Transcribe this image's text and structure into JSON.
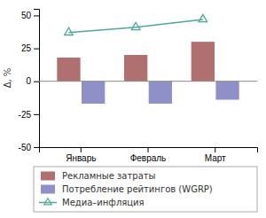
{
  "chart_data": {
    "type": "bar",
    "categories": [
      "Январь",
      "Февраль",
      "Март"
    ],
    "series": [
      {
        "name": "Рекламные затраты",
        "color": "#b07070",
        "values": [
          18,
          20,
          30
        ]
      },
      {
        "name": "Потребление рейтингов (WGRP)",
        "color": "#9090c8",
        "values": [
          -17,
          -17,
          -14
        ]
      },
      {
        "name": "Медиа–инфляция",
        "type": "line",
        "color": "#50a898",
        "marker": "triangle",
        "values": [
          37,
          41,
          47
        ]
      }
    ],
    "ylabel": "Δ, %",
    "ylim": [
      -50,
      55
    ],
    "yticks": [
      -50,
      -25,
      0,
      25,
      50
    ],
    "grid": false,
    "legend": "bottom"
  }
}
